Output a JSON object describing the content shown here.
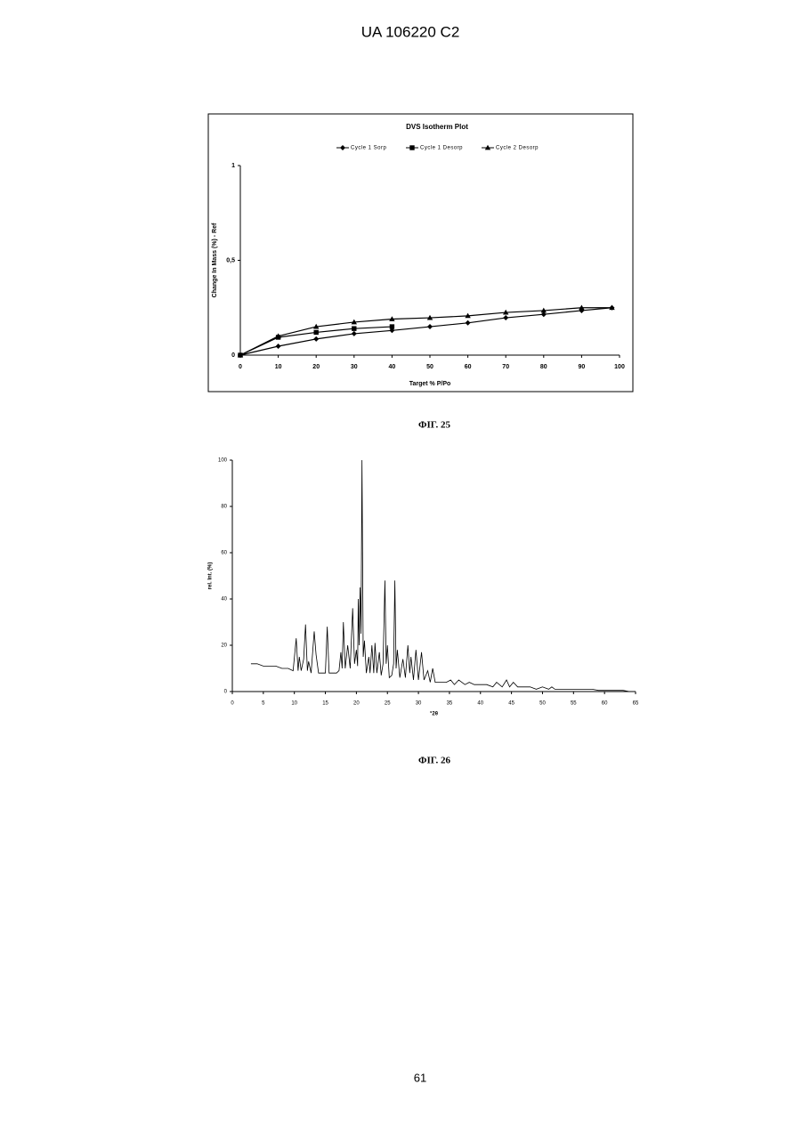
{
  "header": "UA   106220   C2",
  "chart_data": [
    {
      "type": "line",
      "title": "DVS Isotherm Plot",
      "x_label": "Target % P/Po",
      "y_label": "Change In Mass (%) - Ref",
      "legend": "top",
      "series": [
        {
          "name": "Cycle 1 Sorp",
          "color": "#000000",
          "marker": "diamond",
          "x": [
            0,
            10,
            20,
            30,
            40,
            50,
            60,
            70,
            80,
            90,
            98
          ],
          "values": [
            0,
            0.047,
            0.085,
            0.113,
            0.13,
            0.15,
            0.17,
            0.197,
            0.215,
            0.235,
            0.25
          ]
        },
        {
          "name": "Cycle 1 Desorp",
          "color": "#000000",
          "marker": "square",
          "x": [
            0,
            10,
            20,
            30,
            40
          ],
          "values": [
            0,
            0.094,
            0.12,
            0.14,
            0.15
          ]
        },
        {
          "name": "Cycle 2 Desorp",
          "color": "#000000",
          "marker": "triangle",
          "x": [
            0,
            10,
            20,
            30,
            40,
            50,
            60,
            70,
            80,
            90,
            98
          ],
          "values": [
            0,
            0.1,
            0.15,
            0.174,
            0.19,
            0.197,
            0.207,
            0.225,
            0.235,
            0.25,
            0.25
          ]
        }
      ],
      "xlim": [
        0,
        100
      ],
      "xticks": [
        0,
        10,
        20,
        30,
        40,
        50,
        60,
        70,
        80,
        90,
        100
      ],
      "ylim": [
        0,
        1
      ],
      "yticks": [
        0,
        {
          "value": 0.5,
          "label": "0,5"
        },
        1
      ]
    },
    {
      "type": "line",
      "x_label": "°2θ",
      "y_label": "rel. Int. (%)",
      "series": [
        {
          "color": "#000000",
          "x": [
            3,
            4,
            5,
            6,
            7,
            8,
            9,
            9.8,
            10.3,
            10.6,
            10.8,
            11.1,
            11.5,
            11.8,
            12.1,
            12.3,
            12.7,
            13.2,
            13.5,
            13.9,
            14.5,
            15.0,
            15.3,
            15.6,
            16.2,
            16.8,
            17.2,
            17.5,
            17.7,
            17.9,
            18.2,
            18.6,
            19.0,
            19.4,
            19.7,
            20.0,
            20.2,
            20.3,
            20.45,
            20.6,
            20.75,
            20.9,
            21.1,
            21.3,
            21.6,
            22.0,
            22.2,
            22.5,
            22.8,
            23.0,
            23.3,
            23.7,
            24.0,
            24.3,
            24.6,
            24.8,
            25.0,
            25.3,
            25.7,
            26.0,
            26.2,
            26.4,
            26.6,
            27.0,
            27.5,
            27.9,
            28.3,
            28.6,
            28.8,
            29.2,
            29.6,
            30.0,
            30.5,
            30.9,
            31.5,
            31.9,
            32.3,
            32.7,
            33.5,
            34.5,
            35.2,
            35.8,
            36.5,
            37.5,
            38.2,
            39,
            40,
            41,
            42,
            42.6,
            43.5,
            44.2,
            44.7,
            45.3,
            46,
            47,
            48,
            49,
            50,
            51,
            51.5,
            52,
            53,
            54,
            55,
            56,
            57,
            58,
            59,
            60,
            61,
            62,
            63,
            64,
            65
          ],
          "values": [
            12,
            12,
            11,
            11,
            11,
            10,
            10,
            9,
            23,
            9,
            15,
            9,
            14,
            29,
            9,
            13,
            8,
            26,
            16,
            8,
            8,
            8,
            28,
            8,
            8,
            8,
            9,
            17,
            10,
            30,
            10,
            20,
            10,
            36,
            12,
            18,
            11,
            40,
            20,
            45,
            25,
            100,
            15,
            22,
            8,
            15,
            8,
            20,
            8,
            21,
            8,
            17,
            7,
            12,
            48,
            12,
            20,
            6,
            7,
            12,
            48,
            10,
            18,
            6,
            14,
            6,
            20,
            8,
            15,
            5,
            18,
            5,
            17,
            5,
            9,
            4,
            10,
            4,
            4,
            4,
            5,
            3,
            5,
            3,
            4,
            3,
            3,
            3,
            2,
            4,
            2,
            5,
            2,
            4,
            2,
            2,
            2,
            1,
            2,
            1,
            2,
            1,
            1,
            1,
            1,
            1,
            1,
            1,
            0.5,
            0.5,
            0.5,
            0.5,
            0.5,
            0,
            0
          ]
        }
      ],
      "xlim": [
        0,
        65
      ],
      "xticks": [
        0,
        5,
        10,
        15,
        20,
        25,
        30,
        35,
        40,
        45,
        50,
        55,
        60,
        65
      ],
      "ylim": [
        0,
        100
      ],
      "yticks": [
        0,
        20,
        40,
        60,
        80,
        100
      ]
    }
  ],
  "captions": [
    "ФІГ. 25",
    "ФІГ. 26"
  ],
  "page_number": "61"
}
